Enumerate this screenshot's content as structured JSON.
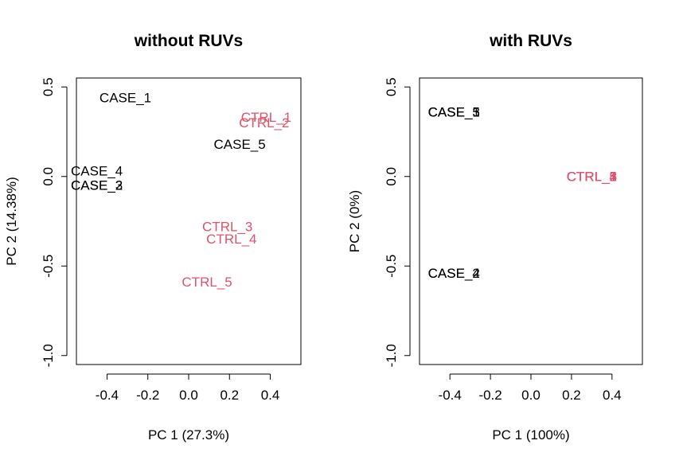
{
  "colors": {
    "case": "#000000",
    "ctrl": "#DF536B",
    "axis": "#000000"
  },
  "chart_data": [
    {
      "type": "scatter",
      "title": "without RUVs",
      "xlabel": "PC 1 (27.3%)",
      "ylabel": "PC 2 (14.38%)",
      "xlim": [
        -0.55,
        0.55
      ],
      "ylim": [
        -1.05,
        0.55
      ],
      "xticks": [
        -0.4,
        -0.2,
        0.0,
        0.2,
        0.4
      ],
      "xtick_labels": [
        "-0.4",
        "-0.2",
        "0.0",
        "0.2",
        "0.4"
      ],
      "yticks": [
        -1.0,
        -0.5,
        0.0,
        0.5
      ],
      "ytick_labels": [
        "-1.0",
        "-0.5",
        "0.0",
        "0.5"
      ],
      "grid": false,
      "points": [
        {
          "label": "CASE_1",
          "x": -0.31,
          "y": 0.44,
          "group": "case"
        },
        {
          "label": "CASE_4",
          "x": -0.45,
          "y": 0.03,
          "group": "case"
        },
        {
          "label": "CASE_2",
          "x": -0.45,
          "y": -0.05,
          "group": "case"
        },
        {
          "label": "CASE_3",
          "x": -0.45,
          "y": -0.05,
          "group": "case"
        },
        {
          "label": "CASE_5",
          "x": 0.25,
          "y": 0.18,
          "group": "case"
        },
        {
          "label": "CTRL_1",
          "x": 0.38,
          "y": 0.33,
          "group": "ctrl"
        },
        {
          "label": "CTRL_2",
          "x": 0.37,
          "y": 0.3,
          "group": "ctrl"
        },
        {
          "label": "CTRL_3",
          "x": 0.19,
          "y": -0.28,
          "group": "ctrl"
        },
        {
          "label": "CTRL_4",
          "x": 0.21,
          "y": -0.35,
          "group": "ctrl"
        },
        {
          "label": "CTRL_5",
          "x": 0.09,
          "y": -0.59,
          "group": "ctrl"
        }
      ]
    },
    {
      "type": "scatter",
      "title": "with RUVs",
      "xlabel": "PC 1 (100%)",
      "ylabel": "PC 2 (0%)",
      "xlim": [
        -0.55,
        0.55
      ],
      "ylim": [
        -1.05,
        0.55
      ],
      "xticks": [
        -0.4,
        -0.2,
        0.0,
        0.2,
        0.4
      ],
      "xtick_labels": [
        "-0.4",
        "-0.2",
        "0.0",
        "0.2",
        "0.4"
      ],
      "yticks": [
        -1.0,
        -0.5,
        0.0,
        0.5
      ],
      "ytick_labels": [
        "-1.0",
        "-0.5",
        "0.0",
        "0.5"
      ],
      "grid": false,
      "points": [
        {
          "label": "CASE_1",
          "x": -0.38,
          "y": 0.36,
          "group": "case"
        },
        {
          "label": "CASE_3",
          "x": -0.38,
          "y": 0.36,
          "group": "case"
        },
        {
          "label": "CASE_5",
          "x": -0.38,
          "y": 0.36,
          "group": "case"
        },
        {
          "label": "CASE_2",
          "x": -0.38,
          "y": -0.54,
          "group": "case"
        },
        {
          "label": "CASE_4",
          "x": -0.38,
          "y": -0.54,
          "group": "case"
        },
        {
          "label": "CTRL_1",
          "x": 0.3,
          "y": 0.0,
          "group": "ctrl"
        },
        {
          "label": "CTRL_2",
          "x": 0.3,
          "y": 0.0,
          "group": "ctrl"
        },
        {
          "label": "CTRL_3",
          "x": 0.3,
          "y": 0.0,
          "group": "ctrl"
        },
        {
          "label": "CTRL_4",
          "x": 0.3,
          "y": 0.0,
          "group": "ctrl"
        },
        {
          "label": "CTRL_5",
          "x": 0.3,
          "y": 0.0,
          "group": "ctrl"
        }
      ]
    }
  ]
}
